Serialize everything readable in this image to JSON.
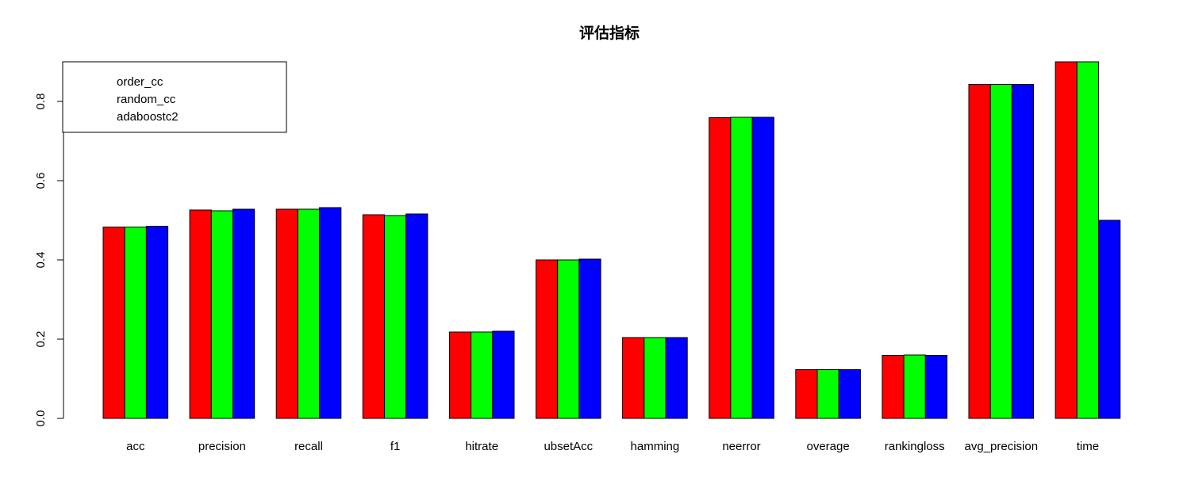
{
  "chart_data": {
    "type": "bar",
    "title": "评估指标",
    "xlabel": "",
    "ylabel": "",
    "ylim": [
      0,
      0.9
    ],
    "yticks": [
      0.0,
      0.2,
      0.4,
      0.6,
      0.8
    ],
    "ytick_labels": [
      "0.0",
      "0.2",
      "0.4",
      "0.6",
      "0.8"
    ],
    "grid": false,
    "legend_position": "top-left",
    "categories": [
      "acc",
      "precision",
      "recall",
      "f1",
      "hitrate",
      "ubsetAcc",
      "hamming",
      "neerror",
      "overage",
      "rankingloss",
      "avg_precision",
      "time"
    ],
    "series": [
      {
        "name": "order_cc",
        "color": "#ff0000",
        "values": [
          0.483,
          0.526,
          0.528,
          0.514,
          0.218,
          0.4,
          0.204,
          0.759,
          0.123,
          0.159,
          0.843,
          0.9
        ]
      },
      {
        "name": "random_cc",
        "color": "#00ff00",
        "values": [
          0.483,
          0.524,
          0.528,
          0.512,
          0.218,
          0.4,
          0.204,
          0.76,
          0.123,
          0.16,
          0.843,
          0.9
        ]
      },
      {
        "name": "adaboostc2",
        "color": "#0000ff",
        "values": [
          0.485,
          0.528,
          0.532,
          0.516,
          0.22,
          0.402,
          0.204,
          0.76,
          0.123,
          0.159,
          0.843,
          0.5
        ]
      }
    ]
  }
}
